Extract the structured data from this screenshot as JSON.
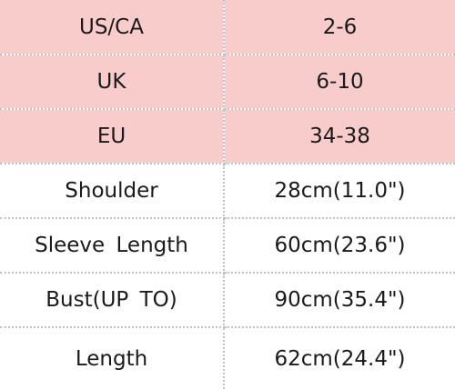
{
  "size_chart": {
    "region_rows": [
      {
        "label": "US/CA",
        "value": "2-6"
      },
      {
        "label": "UK",
        "value": "6-10"
      },
      {
        "label": "EU",
        "value": "34-38"
      }
    ],
    "measurement_rows": [
      {
        "label": "Shoulder",
        "value": "28cm(11.0\")"
      },
      {
        "label": "Sleeve Length",
        "value": "60cm(23.6\")"
      },
      {
        "label": "Bust(UP TO)",
        "value": "90cm(35.4\")"
      },
      {
        "label": "Length",
        "value": "62cm(24.4\")"
      }
    ],
    "colors": {
      "region_row_background": "#f9cccc",
      "measurement_row_background": "#ffffff",
      "grid_line": "#c2c2c2",
      "text": "#1a1a1a"
    }
  }
}
